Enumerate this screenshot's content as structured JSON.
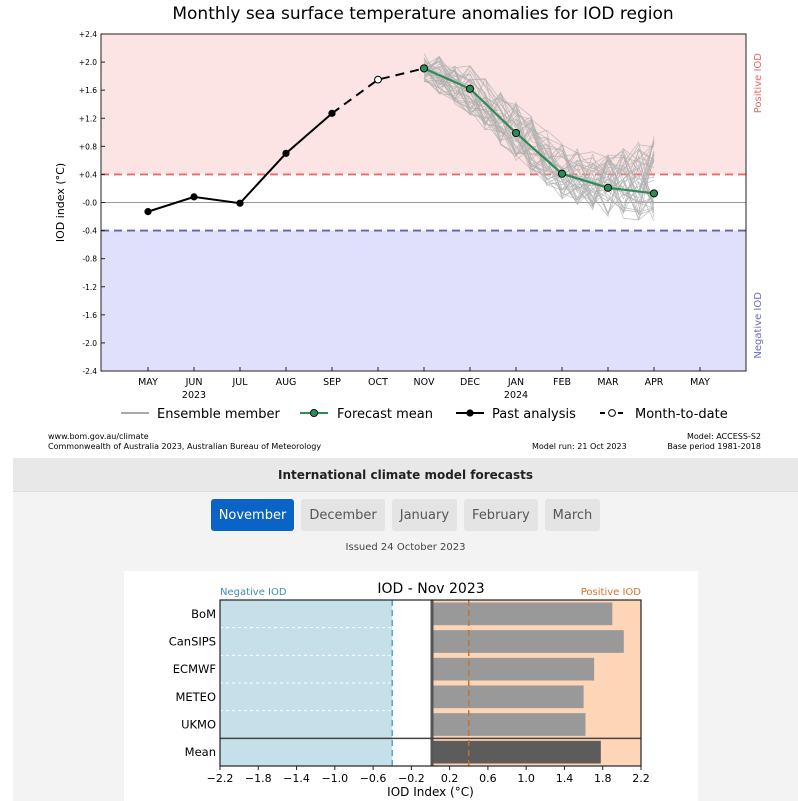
{
  "top": {
    "footer_left_1": "www.bom.gov.au/climate",
    "footer_left_2": "Commonwealth of Australia 2023, Australian Bureau of Meteorology",
    "footer_mid": "Model run: 21 Oct 2023",
    "footer_right_1": "Model: ACCESS-S2",
    "footer_right_2": "Base period 1981-2018"
  },
  "bottom": {
    "section_title": "International climate model forecasts",
    "tabs": [
      "November",
      "December",
      "January",
      "February",
      "March"
    ],
    "active_tab": 0,
    "issued": "Issued 24 October 2023"
  },
  "chart_data": [
    {
      "type": "line",
      "title": "Monthly sea surface temperature anomalies for IOD region",
      "ylabel": "IOD index (°C)",
      "xlabel": "",
      "x_ticks": [
        "MAY",
        "JUN",
        "JUL",
        "AUG",
        "SEP",
        "OCT",
        "NOV",
        "DEC",
        "JAN",
        "FEB",
        "MAR",
        "APR",
        "MAY"
      ],
      "x_year_labels": [
        {
          "tick": "JUN",
          "label": "2023"
        },
        {
          "tick": "JAN",
          "label": "2024"
        }
      ],
      "y_ticks": [
        "+2.4",
        "+2.0",
        "+1.6",
        "+1.2",
        "+0.8",
        "+0.4",
        "-0.0",
        "-0.4",
        "-0.8",
        "-1.2",
        "-1.6",
        "-2.0",
        "-2.4"
      ],
      "ylim": [
        -2.4,
        2.4
      ],
      "thresholds": {
        "positive": 0.4,
        "negative": -0.4
      },
      "positive_color": "#fde4e4",
      "negative_color": "#e0e0fc",
      "region_labels": {
        "positive": "Positive IOD",
        "negative": "Negative IOD"
      },
      "legend": {
        "position": "bottom",
        "entries": [
          "Ensemble member",
          "Forecast mean",
          "Past analysis",
          "Month-to-date"
        ]
      },
      "series": [
        {
          "name": "Past analysis",
          "x": [
            "MAY",
            "JUN",
            "JUL",
            "AUG",
            "SEP"
          ],
          "values": [
            -0.13,
            0.08,
            -0.01,
            0.7,
            1.27
          ],
          "color": "#000000"
        },
        {
          "name": "Month-to-date",
          "x": [
            "OCT"
          ],
          "values": [
            1.75
          ],
          "color": "#000000"
        },
        {
          "name": "Forecast mean",
          "x": [
            "NOV",
            "DEC",
            "JAN",
            "FEB",
            "MAR",
            "APR"
          ],
          "values": [
            1.91,
            1.62,
            0.99,
            0.41,
            0.21,
            0.13
          ],
          "color": "#2e8b57"
        }
      ],
      "ensemble": {
        "name": "Ensemble member",
        "x": [
          "NOV",
          "DEC",
          "JAN",
          "FEB",
          "MAR",
          "APR"
        ],
        "spread_low": [
          1.7,
          1.25,
          0.6,
          0.05,
          -0.2,
          -0.3
        ],
        "spread_high": [
          2.15,
          1.95,
          1.45,
          0.85,
          0.7,
          0.95
        ],
        "color": "#b0b0b0"
      }
    },
    {
      "type": "bar",
      "title": "IOD - Nov 2023",
      "xlabel": "IOD Index (°C)",
      "ylabel": "",
      "orientation": "horizontal",
      "categories": [
        "BoM",
        "CanSIPS",
        "ECMWF",
        "METEO",
        "UKMO",
        "Mean"
      ],
      "values": [
        1.9,
        2.02,
        1.71,
        1.6,
        1.62,
        1.78
      ],
      "xlim": [
        -2.2,
        2.2
      ],
      "x_ticks": [
        "−2.2",
        "−1.8",
        "−1.4",
        "−1.0",
        "−0.6",
        "−0.2",
        "0.2",
        "0.6",
        "1.0",
        "1.4",
        "1.8",
        "2.2"
      ],
      "thresholds": {
        "positive": 0.4,
        "negative": -0.4
      },
      "region_labels": {
        "positive": "Positive IOD",
        "negative": "Negative IOD"
      },
      "negative_color": "#c5e0e8",
      "positive_color": "#ffd5b8",
      "bar_color": "#999999",
      "mean_bar_color": "#5c5c5c"
    }
  ]
}
